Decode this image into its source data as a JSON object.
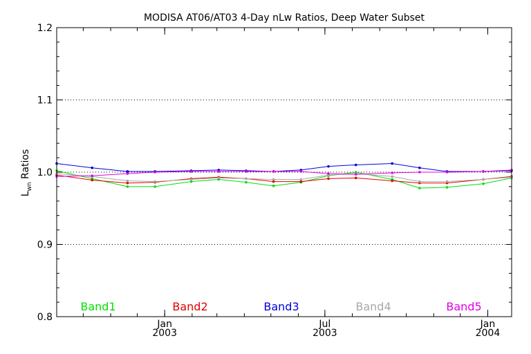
{
  "chart_data": {
    "type": "line",
    "title": "MODISA AT06/AT03 4-Day nLw Ratios, Deep Water Subset",
    "ylabel_main": "L",
    "ylabel_sub": "wn",
    "ylabel_rest": " Ratios",
    "ylim": [
      0.8,
      1.2
    ],
    "yticks": [
      "0.8",
      "0.9",
      "1.0",
      "1.1",
      "1.2"
    ],
    "xlim": [
      "2002-09-01",
      "2004-01-28"
    ],
    "xticks": [
      {
        "date": "2003-01-01",
        "month": "Jan",
        "year": "2003"
      },
      {
        "date": "2003-07-01",
        "month": "Jul",
        "year": "2003"
      },
      {
        "date": "2004-01-01",
        "month": "Jan",
        "year": "2004"
      }
    ],
    "grid_y": [
      0.9,
      1.0,
      1.1
    ],
    "x": [
      "2002-09-01",
      "2002-10-11",
      "2002-11-20",
      "2002-12-21",
      "2003-01-31",
      "2003-03-03",
      "2003-04-03",
      "2003-05-04",
      "2003-06-04",
      "2003-07-05",
      "2003-08-05",
      "2003-09-15",
      "2003-10-16",
      "2003-11-16",
      "2003-12-27",
      "2004-01-28"
    ],
    "series": [
      {
        "name": "Band1",
        "color": "#00e000",
        "values": [
          1.002,
          0.991,
          0.98,
          0.98,
          0.987,
          0.99,
          0.986,
          0.981,
          0.986,
          0.995,
          1.0,
          0.99,
          0.978,
          0.979,
          0.984,
          0.992
        ]
      },
      {
        "name": "Band2",
        "color": "#e00000",
        "values": [
          0.996,
          0.989,
          0.985,
          0.986,
          0.991,
          0.993,
          0.991,
          0.987,
          0.987,
          0.991,
          0.992,
          0.988,
          0.985,
          0.985,
          0.99,
          0.994
        ]
      },
      {
        "name": "Band3",
        "color": "#0000e0",
        "values": [
          1.012,
          1.006,
          1.001,
          1.001,
          1.002,
          1.003,
          1.002,
          1.001,
          1.003,
          1.008,
          1.01,
          1.012,
          1.006,
          1.001,
          1.001,
          1.002
        ]
      },
      {
        "name": "Band4",
        "color": "#a8a8a8",
        "values": [
          0.998,
          0.994,
          0.988,
          0.987,
          0.99,
          0.992,
          0.991,
          0.99,
          0.99,
          0.996,
          0.998,
          0.994,
          0.987,
          0.987,
          0.99,
          0.993
        ]
      },
      {
        "name": "Band5",
        "color": "#e000e0",
        "values": [
          0.994,
          0.995,
          0.998,
          1.0,
          1.001,
          1.001,
          1.001,
          1.001,
          1.001,
          0.998,
          0.997,
          0.999,
          1.0,
          1.0,
          1.001,
          1.003
        ]
      }
    ]
  }
}
